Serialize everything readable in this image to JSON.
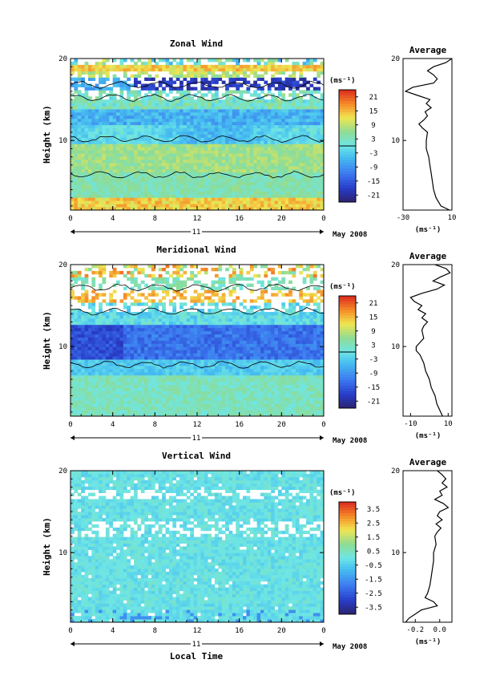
{
  "chart_data": [
    {
      "type": "heatmap",
      "title": "Zonal Wind",
      "ylabel": "Height (km)",
      "xlabel": "",
      "x_ticks": [
        "0",
        "4",
        "8",
        "12",
        "16",
        "20",
        "0"
      ],
      "xlim": [
        0,
        24
      ],
      "y_ticks": [
        "10",
        "20"
      ],
      "ylim": [
        1.5,
        20
      ],
      "day_label": "11",
      "date_label": "May 2008",
      "colorbar": {
        "unit": "(ms⁻¹)",
        "ticks": [
          "21",
          "15",
          "9",
          "3",
          "-3",
          "-9",
          "-15",
          "-21"
        ],
        "range": [
          -24,
          24
        ]
      },
      "average": {
        "title": "Average",
        "xlabel": "(ms⁻¹)",
        "x_ticks": [
          "-30",
          "10"
        ],
        "xlim": [
          -30,
          10
        ],
        "profile": [
          [
            20,
            10
          ],
          [
            19.5,
            5
          ],
          [
            19,
            -5
          ],
          [
            18.5,
            -10
          ],
          [
            18,
            -5
          ],
          [
            17.5,
            -2
          ],
          [
            17,
            -5
          ],
          [
            16.5,
            -22
          ],
          [
            16,
            -28
          ],
          [
            15.5,
            -18
          ],
          [
            15,
            -8
          ],
          [
            14.5,
            -11
          ],
          [
            14,
            -7
          ],
          [
            13.5,
            -12
          ],
          [
            13,
            -10
          ],
          [
            12.5,
            -13
          ],
          [
            12,
            -17
          ],
          [
            11.5,
            -14
          ],
          [
            11,
            -10
          ],
          [
            10,
            -11
          ],
          [
            9,
            -11
          ],
          [
            8,
            -9
          ],
          [
            7,
            -8
          ],
          [
            6,
            -7
          ],
          [
            5,
            -6
          ],
          [
            4,
            -5
          ],
          [
            3,
            -3
          ],
          [
            2,
            1
          ],
          [
            1.5,
            8
          ]
        ]
      }
    },
    {
      "type": "heatmap",
      "title": "Meridional Wind",
      "ylabel": "Height (km)",
      "xlabel": "",
      "x_ticks": [
        "0",
        "4",
        "8",
        "12",
        "16",
        "20",
        "0"
      ],
      "xlim": [
        0,
        24
      ],
      "y_ticks": [
        "10",
        "20"
      ],
      "ylim": [
        1.5,
        20
      ],
      "day_label": "11",
      "date_label": "May 2008",
      "colorbar": {
        "unit": "(ms⁻¹)",
        "ticks": [
          "21",
          "15",
          "9",
          "3",
          "-3",
          "-9",
          "-15",
          "-21"
        ],
        "range": [
          -24,
          24
        ]
      },
      "average": {
        "title": "Average",
        "xlabel": "(ms⁻¹)",
        "x_ticks": [
          "-10",
          "10"
        ],
        "xlim": [
          -14,
          12
        ],
        "profile": [
          [
            20,
            3
          ],
          [
            19.5,
            9
          ],
          [
            19,
            11
          ],
          [
            18.5,
            6
          ],
          [
            18,
            2
          ],
          [
            17.5,
            8
          ],
          [
            17,
            4
          ],
          [
            16.5,
            -4
          ],
          [
            16,
            -10
          ],
          [
            15.5,
            -8
          ],
          [
            15,
            -4
          ],
          [
            14.5,
            -6
          ],
          [
            14,
            -2
          ],
          [
            13.5,
            -4
          ],
          [
            13,
            -1
          ],
          [
            12.5,
            -3
          ],
          [
            12,
            -4
          ],
          [
            11,
            -3
          ],
          [
            10.5,
            -5
          ],
          [
            10,
            -7
          ],
          [
            9.5,
            -7
          ],
          [
            9,
            -5
          ],
          [
            8,
            -3
          ],
          [
            7,
            -2
          ],
          [
            6,
            0
          ],
          [
            5,
            1
          ],
          [
            4,
            3
          ],
          [
            3,
            4
          ],
          [
            2,
            6
          ],
          [
            1.5,
            7
          ]
        ]
      }
    },
    {
      "type": "heatmap",
      "title": "Vertical Wind",
      "ylabel": "Height (km)",
      "xlabel": "Local Time",
      "x_ticks": [
        "0",
        "4",
        "8",
        "12",
        "16",
        "20",
        "0"
      ],
      "xlim": [
        0,
        24
      ],
      "y_ticks": [
        "10",
        "20"
      ],
      "ylim": [
        1.5,
        20
      ],
      "day_label": "11",
      "date_label": "May 2008",
      "colorbar": {
        "unit": "(ms⁻¹)",
        "ticks": [
          "3.5",
          "2.5",
          "1.5",
          "0.5",
          "-0.5",
          "-1.5",
          "-2.5",
          "-3.5"
        ],
        "range": [
          -4,
          4
        ]
      },
      "average": {
        "title": "Average",
        "xlabel": "(ms⁻¹)",
        "x_ticks": [
          "-0.2",
          "0.0"
        ],
        "xlim": [
          -0.3,
          0.1
        ],
        "profile": [
          [
            20,
            -0.02
          ],
          [
            19.5,
            0.02
          ],
          [
            19,
            0.05
          ],
          [
            18.5,
            0.02
          ],
          [
            18,
            0.06
          ],
          [
            17.5,
            0.0
          ],
          [
            17,
            0.02
          ],
          [
            16.5,
            -0.04
          ],
          [
            16,
            0.03
          ],
          [
            15.5,
            0.07
          ],
          [
            15,
            0.0
          ],
          [
            14.5,
            -0.02
          ],
          [
            14,
            0.02
          ],
          [
            13.5,
            -0.03
          ],
          [
            13,
            0.01
          ],
          [
            12.5,
            -0.02
          ],
          [
            12,
            -0.04
          ],
          [
            11,
            -0.03
          ],
          [
            10,
            -0.05
          ],
          [
            9,
            -0.05
          ],
          [
            8,
            -0.06
          ],
          [
            7,
            -0.07
          ],
          [
            6,
            -0.08
          ],
          [
            5,
            -0.1
          ],
          [
            4.5,
            -0.12
          ],
          [
            4,
            -0.05
          ],
          [
            3.5,
            -0.02
          ],
          [
            3,
            -0.15
          ],
          [
            2,
            -0.25
          ],
          [
            1.5,
            -0.28
          ]
        ]
      }
    }
  ]
}
